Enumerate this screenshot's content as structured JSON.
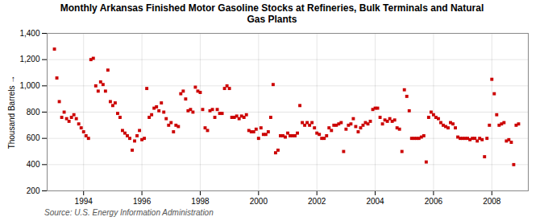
{
  "chart_data": {
    "type": "scatter",
    "title": "Monthly Arkansas Finished Motor Gasoline Stocks at Refineries, Bulk Terminals and Natural\nGas Plants",
    "ylabel": "Thousand Barrels",
    "annotation": "Source: U.S. Energy Information Administration",
    "color": "#cc0000",
    "marker": "square",
    "grid": true,
    "xlim": [
      1992.75,
      2009.25
    ],
    "xticks": [
      1994,
      1996,
      1998,
      2000,
      2002,
      2004,
      2006,
      2008
    ],
    "ylim": [
      200,
      1400
    ],
    "yticks": [
      200,
      400,
      600,
      800,
      {
        "value": 1000,
        "label": "1,000"
      },
      {
        "value": 1200,
        "label": "1,200"
      },
      {
        "value": 1400,
        "label": "1,400"
      }
    ],
    "x": [
      1993.0,
      1993.083,
      1993.167,
      1993.25,
      1993.333,
      1993.417,
      1993.5,
      1993.583,
      1993.667,
      1993.75,
      1993.833,
      1993.917,
      1994.0,
      1994.083,
      1994.167,
      1994.25,
      1994.333,
      1994.417,
      1994.5,
      1994.583,
      1994.667,
      1994.75,
      1994.833,
      1994.917,
      1995.0,
      1995.083,
      1995.167,
      1995.25,
      1995.333,
      1995.417,
      1995.5,
      1995.583,
      1995.667,
      1995.75,
      1995.833,
      1995.917,
      1996.0,
      1996.083,
      1996.167,
      1996.25,
      1996.333,
      1996.417,
      1996.5,
      1996.583,
      1996.667,
      1996.75,
      1996.833,
      1996.917,
      1997.0,
      1997.083,
      1997.167,
      1997.25,
      1997.333,
      1997.417,
      1997.5,
      1997.583,
      1997.667,
      1997.75,
      1997.833,
      1997.917,
      1998.0,
      1998.083,
      1998.167,
      1998.25,
      1998.333,
      1998.417,
      1998.5,
      1998.583,
      1998.667,
      1998.75,
      1998.833,
      1998.917,
      1999.0,
      1999.083,
      1999.167,
      1999.25,
      1999.333,
      1999.417,
      1999.5,
      1999.583,
      1999.667,
      1999.75,
      1999.833,
      1999.917,
      2000.0,
      2000.083,
      2000.167,
      2000.25,
      2000.333,
      2000.417,
      2000.5,
      2000.583,
      2000.667,
      2000.75,
      2000.833,
      2000.917,
      2001.0,
      2001.083,
      2001.167,
      2001.25,
      2001.333,
      2001.417,
      2001.5,
      2001.583,
      2001.667,
      2001.75,
      2001.833,
      2001.917,
      2002.0,
      2002.083,
      2002.167,
      2002.25,
      2002.333,
      2002.417,
      2002.5,
      2002.583,
      2002.667,
      2002.75,
      2002.833,
      2002.917,
      2003.0,
      2003.083,
      2003.167,
      2003.25,
      2003.333,
      2003.417,
      2003.5,
      2003.583,
      2003.667,
      2003.75,
      2003.833,
      2003.917,
      2004.0,
      2004.083,
      2004.167,
      2004.25,
      2004.333,
      2004.417,
      2004.5,
      2004.583,
      2004.667,
      2004.75,
      2004.833,
      2004.917,
      2005.0,
      2005.083,
      2005.167,
      2005.25,
      2005.333,
      2005.417,
      2005.5,
      2005.583,
      2005.667,
      2005.75,
      2005.833,
      2005.917,
      2006.0,
      2006.083,
      2006.167,
      2006.25,
      2006.333,
      2006.417,
      2006.5,
      2006.583,
      2006.667,
      2006.75,
      2006.833,
      2006.917,
      2007.0,
      2007.083,
      2007.167,
      2007.25,
      2007.333,
      2007.417,
      2007.5,
      2007.583,
      2007.667,
      2007.75,
      2007.833,
      2007.917,
      2008.0,
      2008.083,
      2008.167,
      2008.25,
      2008.333,
      2008.417,
      2008.5,
      2008.583,
      2008.667,
      2008.75,
      2008.833,
      2008.917
    ],
    "values": [
      1280,
      1060,
      880,
      760,
      800,
      750,
      730,
      760,
      780,
      750,
      710,
      680,
      650,
      620,
      600,
      1200,
      1210,
      1000,
      960,
      1030,
      1010,
      960,
      1120,
      880,
      850,
      870,
      790,
      760,
      660,
      640,
      620,
      600,
      510,
      580,
      620,
      660,
      590,
      600,
      980,
      760,
      780,
      830,
      840,
      810,
      870,
      800,
      750,
      700,
      720,
      650,
      700,
      690,
      940,
      960,
      900,
      810,
      820,
      800,
      990,
      960,
      950,
      820,
      680,
      660,
      810,
      820,
      760,
      820,
      790,
      790,
      980,
      1000,
      980,
      760,
      760,
      770,
      750,
      770,
      760,
      780,
      660,
      650,
      650,
      670,
      600,
      680,
      630,
      630,
      650,
      760,
      1010,
      490,
      510,
      620,
      620,
      610,
      640,
      620,
      620,
      620,
      640,
      850,
      720,
      700,
      720,
      700,
      720,
      680,
      640,
      630,
      600,
      600,
      620,
      680,
      660,
      700,
      700,
      710,
      720,
      500,
      670,
      700,
      710,
      750,
      690,
      650,
      680,
      700,
      720,
      710,
      730,
      820,
      830,
      830,
      760,
      710,
      740,
      730,
      750,
      730,
      740,
      680,
      670,
      500,
      970,
      920,
      810,
      600,
      600,
      600,
      600,
      610,
      620,
      420,
      760,
      800,
      780,
      760,
      750,
      720,
      700,
      690,
      680,
      720,
      710,
      680,
      610,
      600,
      600,
      600,
      600,
      590,
      600,
      600,
      580,
      600,
      590,
      460,
      600,
      700,
      1050,
      940,
      780,
      700,
      710,
      720,
      580,
      590,
      570,
      400,
      700,
      710
    ]
  }
}
